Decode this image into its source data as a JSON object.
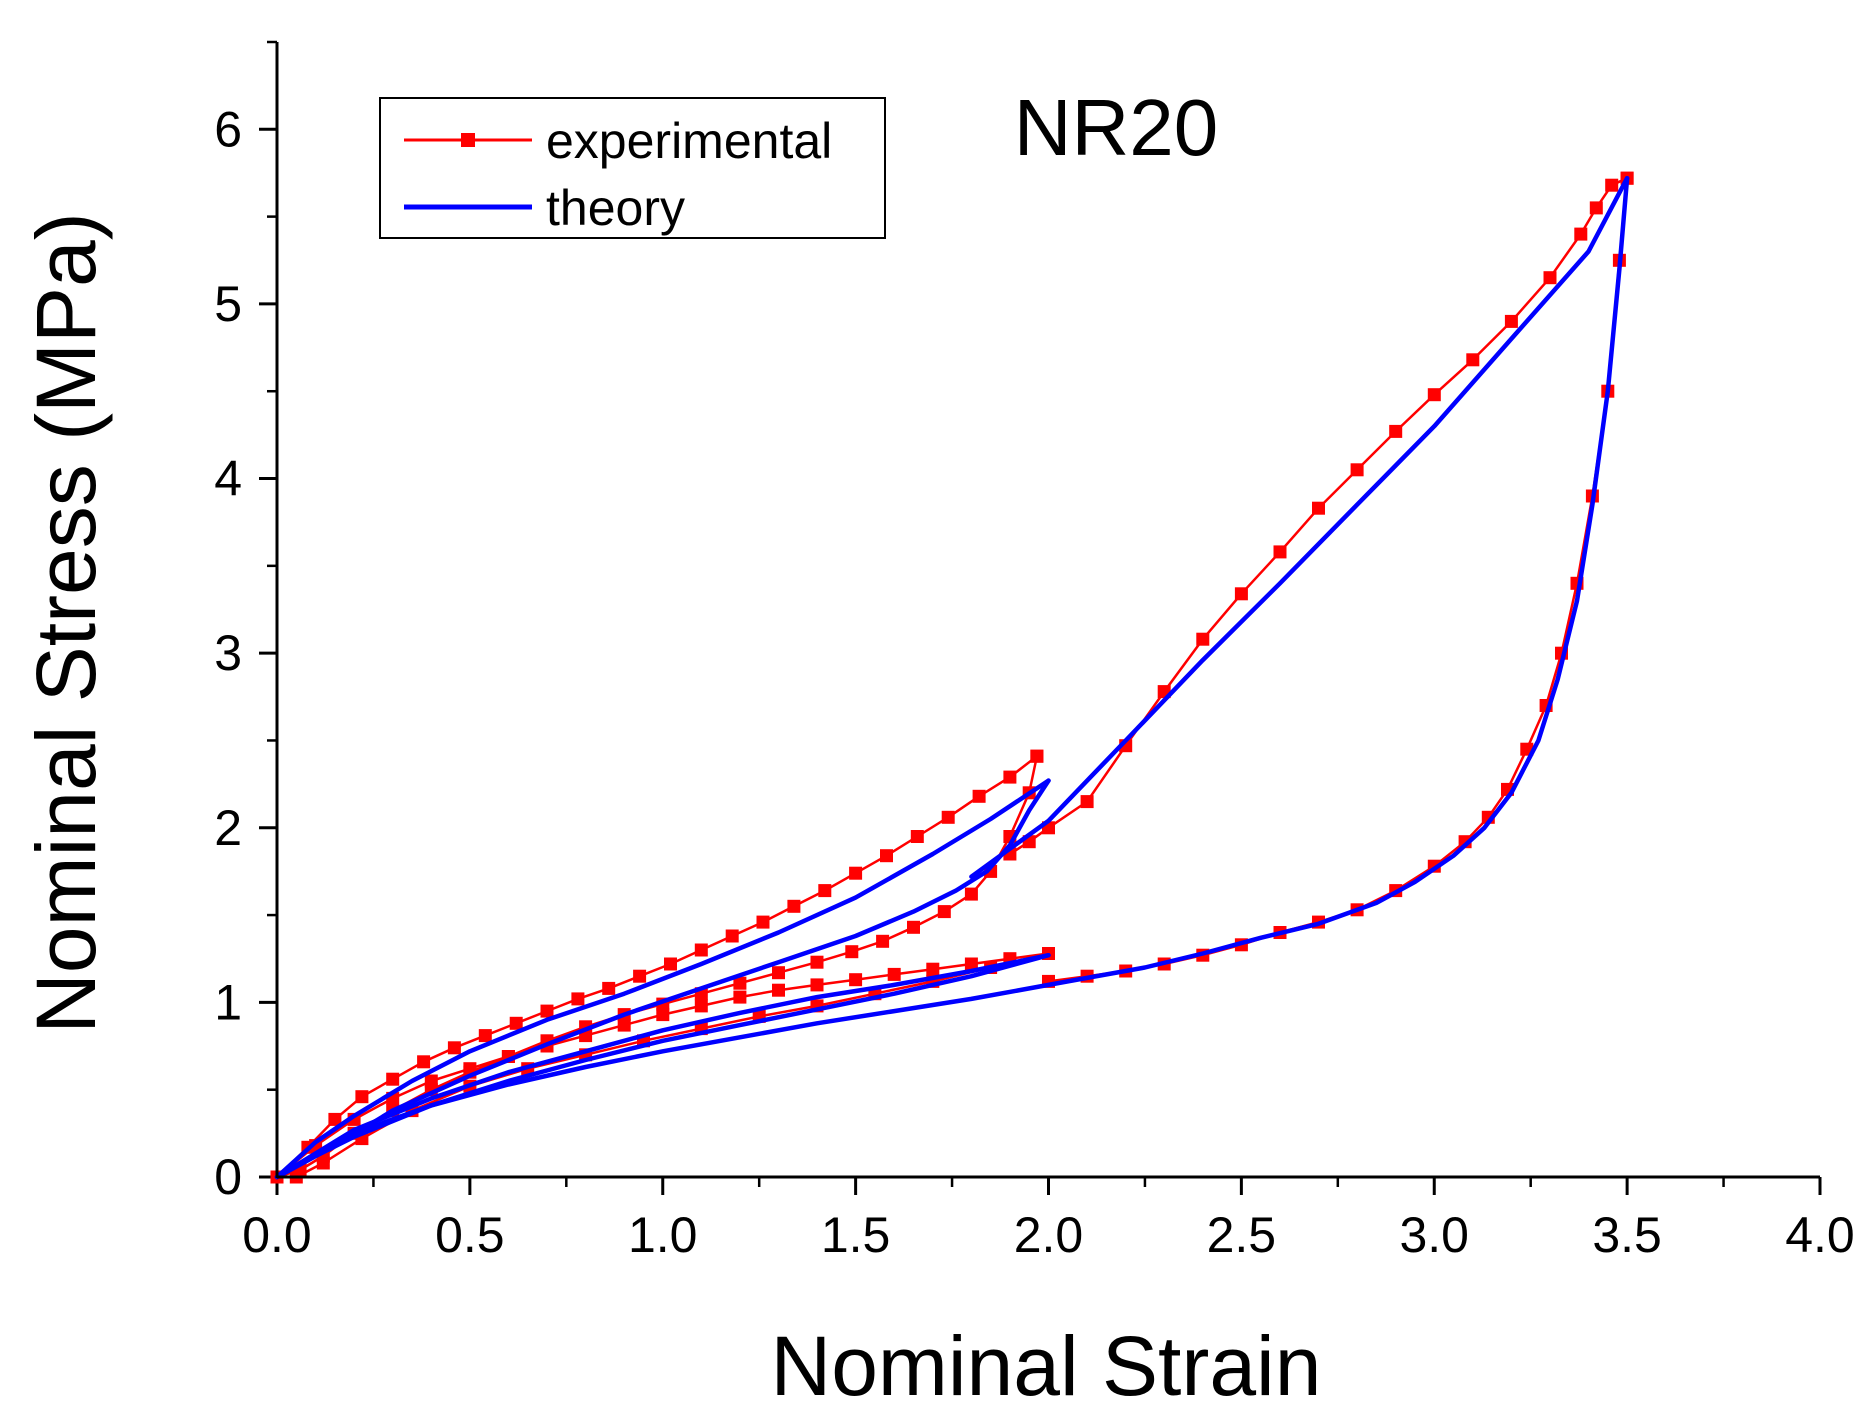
{
  "chart_data": {
    "type": "line",
    "title": "NR20",
    "xlabel": "Nominal Strain",
    "ylabel": "Nominal Stress (MPa)",
    "xlim": [
      0.0,
      4.0
    ],
    "ylim": [
      0,
      6.5
    ],
    "xticks": [
      "0.0",
      "0.5",
      "1.0",
      "1.5",
      "2.0",
      "2.5",
      "3.0",
      "3.5",
      "4.0"
    ],
    "yticks": [
      "0",
      "1",
      "2",
      "3",
      "4",
      "5",
      "6"
    ],
    "legend_position": "top-left",
    "series": [
      {
        "name": "experimental",
        "color": "#ff0000",
        "marker": "square",
        "segments": [
          {
            "x": [
              0,
              0.08,
              0.15,
              0.22,
              0.3,
              0.38,
              0.46,
              0.54,
              0.62,
              0.7,
              0.78,
              0.86,
              0.94,
              1.02,
              1.1,
              1.18,
              1.26,
              1.34,
              1.42,
              1.5,
              1.58,
              1.66,
              1.74,
              1.82,
              1.9,
              1.97
            ],
            "y": [
              0,
              0.17,
              0.33,
              0.46,
              0.56,
              0.66,
              0.74,
              0.81,
              0.88,
              0.95,
              1.02,
              1.08,
              1.15,
              1.22,
              1.3,
              1.38,
              1.46,
              1.55,
              1.64,
              1.74,
              1.84,
              1.95,
              2.06,
              2.18,
              2.29,
              2.41
            ]
          },
          {
            "x": [
              1.97,
              1.95,
              1.9,
              1.85,
              1.8,
              1.73,
              1.65,
              1.57,
              1.49,
              1.4,
              1.3,
              1.2,
              1.1,
              1.0,
              0.9,
              0.8,
              0.7,
              0.6,
              0.5,
              0.4,
              0.3,
              0.2,
              0.12,
              0.06,
              0
            ],
            "y": [
              2.41,
              2.2,
              1.95,
              1.75,
              1.62,
              1.52,
              1.43,
              1.35,
              1.29,
              1.23,
              1.17,
              1.11,
              1.05,
              0.99,
              0.93,
              0.86,
              0.78,
              0.69,
              0.6,
              0.5,
              0.38,
              0.25,
              0.12,
              0.04,
              0
            ]
          },
          {
            "x": [
              0,
              0.1,
              0.2,
              0.3,
              0.4,
              0.5,
              0.6,
              0.7,
              0.8,
              0.9,
              1.0,
              1.1,
              1.2,
              1.3,
              1.4,
              1.5,
              1.6,
              1.7,
              1.8,
              1.9,
              2.0
            ],
            "y": [
              0,
              0.18,
              0.33,
              0.45,
              0.55,
              0.62,
              0.69,
              0.75,
              0.81,
              0.87,
              0.93,
              0.98,
              1.03,
              1.07,
              1.1,
              1.13,
              1.16,
              1.19,
              1.22,
              1.25,
              1.28
            ]
          },
          {
            "x": [
              2.0,
              1.85,
              1.7,
              1.55,
              1.4,
              1.25,
              1.1,
              0.95,
              0.8,
              0.65,
              0.5,
              0.35,
              0.22,
              0.12,
              0.05
            ],
            "y": [
              1.28,
              1.2,
              1.12,
              1.05,
              0.98,
              0.92,
              0.85,
              0.78,
              0.7,
              0.62,
              0.52,
              0.38,
              0.22,
              0.08,
              0
            ]
          },
          {
            "x": [
              1.9,
              1.95,
              2.0,
              2.1,
              2.2,
              2.3,
              2.4,
              2.5,
              2.6,
              2.7,
              2.8,
              2.9,
              3.0,
              3.1,
              3.2,
              3.3,
              3.38,
              3.42,
              3.46,
              3.5
            ],
            "y": [
              1.85,
              1.92,
              2.0,
              2.15,
              2.47,
              2.78,
              3.08,
              3.34,
              3.58,
              3.83,
              4.05,
              4.27,
              4.48,
              4.68,
              4.9,
              5.15,
              5.4,
              5.55,
              5.68,
              5.72
            ]
          },
          {
            "x": [
              3.5,
              3.48,
              3.45,
              3.41,
              3.37,
              3.33,
              3.29,
              3.24,
              3.19,
              3.14,
              3.08,
              3.0,
              2.9,
              2.8,
              2.7,
              2.6,
              2.5,
              2.4,
              2.3,
              2.2,
              2.1,
              2.0
            ],
            "y": [
              5.72,
              5.25,
              4.5,
              3.9,
              3.4,
              3.0,
              2.7,
              2.45,
              2.22,
              2.06,
              1.92,
              1.78,
              1.64,
              1.53,
              1.46,
              1.4,
              1.33,
              1.27,
              1.22,
              1.18,
              1.15,
              1.12
            ]
          }
        ]
      },
      {
        "name": "theory",
        "color": "#0000ff",
        "marker": "none",
        "segments": [
          {
            "x": [
              0,
              0.1,
              0.2,
              0.35,
              0.5,
              0.7,
              0.9,
              1.1,
              1.3,
              1.5,
              1.7,
              1.85,
              2.0
            ],
            "y": [
              0,
              0.2,
              0.35,
              0.55,
              0.72,
              0.9,
              1.05,
              1.22,
              1.4,
              1.6,
              1.85,
              2.05,
              2.27
            ]
          },
          {
            "x": [
              2.0,
              1.95,
              1.9,
              1.84,
              1.76,
              1.65,
              1.5,
              1.3,
              1.1,
              0.9,
              0.7,
              0.5,
              0.3,
              0.15,
              0
            ],
            "y": [
              2.27,
              2.1,
              1.9,
              1.75,
              1.64,
              1.52,
              1.38,
              1.23,
              1.08,
              0.93,
              0.76,
              0.58,
              0.38,
              0.18,
              0
            ]
          },
          {
            "x": [
              0,
              0.2,
              0.4,
              0.6,
              0.8,
              1.0,
              1.2,
              1.4,
              1.6,
              1.8,
              2.0
            ],
            "y": [
              0,
              0.27,
              0.45,
              0.6,
              0.72,
              0.84,
              0.94,
              1.03,
              1.1,
              1.18,
              1.27
            ]
          },
          {
            "x": [
              2.0,
              1.8,
              1.6,
              1.4,
              1.2,
              1.0,
              0.8,
              0.6,
              0.4,
              0.2,
              0.1,
              0
            ],
            "y": [
              1.27,
              1.15,
              1.05,
              0.96,
              0.87,
              0.78,
              0.67,
              0.55,
              0.41,
              0.23,
              0.12,
              0
            ]
          },
          {
            "x": [
              1.8,
              1.9,
              2.0,
              2.2,
              2.4,
              2.6,
              2.8,
              3.0,
              3.2,
              3.4,
              3.5
            ],
            "y": [
              1.72,
              1.88,
              2.04,
              2.5,
              2.96,
              3.4,
              3.85,
              4.3,
              4.8,
              5.3,
              5.72
            ]
          },
          {
            "x": [
              3.5,
              3.48,
              3.45,
              3.41,
              3.37,
              3.32,
              3.27,
              3.2,
              3.13,
              3.05,
              2.95,
              2.85,
              2.7,
              2.55,
              2.4,
              2.25,
              2.1,
              2.0,
              1.8,
              1.6,
              1.4,
              1.2,
              1.0,
              0.8,
              0.6,
              0.4,
              0.2,
              0
            ],
            "y": [
              5.72,
              5.2,
              4.5,
              3.85,
              3.3,
              2.85,
              2.5,
              2.2,
              2.0,
              1.84,
              1.69,
              1.57,
              1.45,
              1.37,
              1.28,
              1.2,
              1.14,
              1.1,
              1.02,
              0.95,
              0.88,
              0.8,
              0.72,
              0.63,
              0.53,
              0.41,
              0.25,
              0
            ]
          }
        ]
      }
    ]
  }
}
